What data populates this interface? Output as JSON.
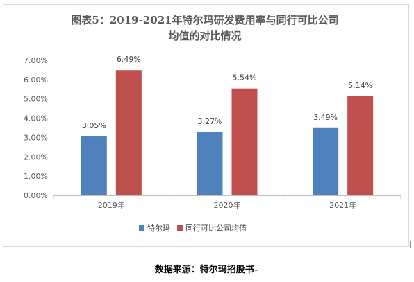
{
  "chart_data": {
    "type": "bar",
    "title": "图表5：2019-2021年特尔玛研发费用率与同行可比公司均值的对比情况",
    "title_lines": [
      "图表5：2019-2021年特尔玛研发费用率与同行可比公司",
      "均值的对比情况"
    ],
    "categories": [
      "2019年",
      "2020年",
      "2021年"
    ],
    "series": [
      {
        "name": "特尔玛",
        "values": [
          3.05,
          3.27,
          3.49
        ],
        "labels": [
          "3.05%",
          "3.27%",
          "3.49%"
        ],
        "color": "#4f81bd"
      },
      {
        "name": "同行可比公司均值",
        "values": [
          6.49,
          5.54,
          5.14
        ],
        "labels": [
          "6.49%",
          "5.54%",
          "5.14%"
        ],
        "color": "#c0504d"
      }
    ],
    "ylim": [
      0,
      7
    ],
    "y_ticks": [
      "0.00%",
      "1.00%",
      "2.00%",
      "3.00%",
      "4.00%",
      "5.00%",
      "6.00%",
      "7.00%"
    ],
    "y_tick_values": [
      0,
      1,
      2,
      3,
      4,
      5,
      6,
      7
    ],
    "grid": false,
    "legend_position": "bottom",
    "xlabel": "",
    "ylabel": ""
  },
  "caption": "数据来源：特尔玛招股书",
  "caption_mark": "↵"
}
